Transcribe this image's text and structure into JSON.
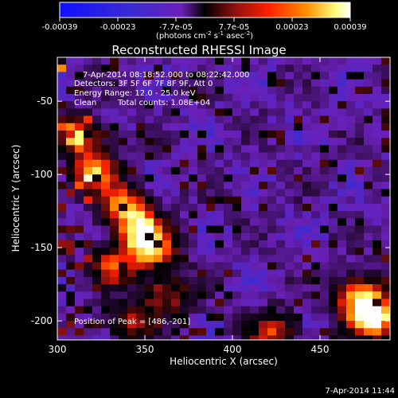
{
  "chart_data": {
    "type": "heatmap",
    "title": "Reconstructed RHESSI Image",
    "xlabel": "Heliocentric X (arcsec)",
    "ylabel": "Heliocentric Y (arcsec)",
    "xlim": [
      300,
      490
    ],
    "ylim": [
      -213,
      -20
    ],
    "xticks": [
      300,
      350,
      400,
      450
    ],
    "yticks": [
      -50,
      -100,
      -150,
      -200
    ],
    "colorbar": {
      "ticks": [
        "-0.00039",
        "-0.00023",
        "-7.7e-05",
        "7.7e-05",
        "0.00023",
        "0.00039"
      ],
      "unit_base": "(photons cm",
      "unit_exp1": "-2",
      "unit_mid": " s",
      "unit_exp2": "-1",
      "unit_mid2": " asec",
      "unit_exp3": "-2",
      "unit_end": ")"
    },
    "annotations": {
      "time_range": "7-Apr-2014 08:18:52.000 to 08:22:42.000",
      "detectors": "Detectors: 3F 5F 6F 7F 8F 9F, Att 0",
      "energy": "Energy Range: 12.0 - 25.0 keV",
      "clean_label": "Clean",
      "total_counts": "Total counts: 1.08E+04",
      "peak": "Position of Peak = [486,-201]"
    },
    "hot_regions": [
      {
        "x": 318,
        "y": -95,
        "level": 0.7
      },
      {
        "x": 335,
        "y": -118,
        "level": 0.6
      },
      {
        "x": 345,
        "y": -135,
        "level": 0.75
      },
      {
        "x": 352,
        "y": -150,
        "level": 0.65
      },
      {
        "x": 330,
        "y": -160,
        "level": 0.55
      },
      {
        "x": 360,
        "y": -180,
        "level": 0.5
      },
      {
        "x": 340,
        "y": -200,
        "level": 0.45
      },
      {
        "x": 312,
        "y": -70,
        "level": 0.5
      },
      {
        "x": 420,
        "y": -205,
        "level": 0.5
      },
      {
        "x": 478,
        "y": -195,
        "level": 1.0
      },
      {
        "x": 470,
        "y": -180,
        "level": 0.7
      }
    ],
    "peak_position": [
      486,
      -201
    ],
    "colormap": [
      "#0000ff",
      "#3c2bd0",
      "#6a20b8",
      "#2a0a3a",
      "#000000",
      "#8a1010",
      "#ff2000",
      "#ff9000",
      "#ffff80",
      "#ffffff"
    ]
  },
  "footer_timestamp": "7-Apr-2014 11:44"
}
